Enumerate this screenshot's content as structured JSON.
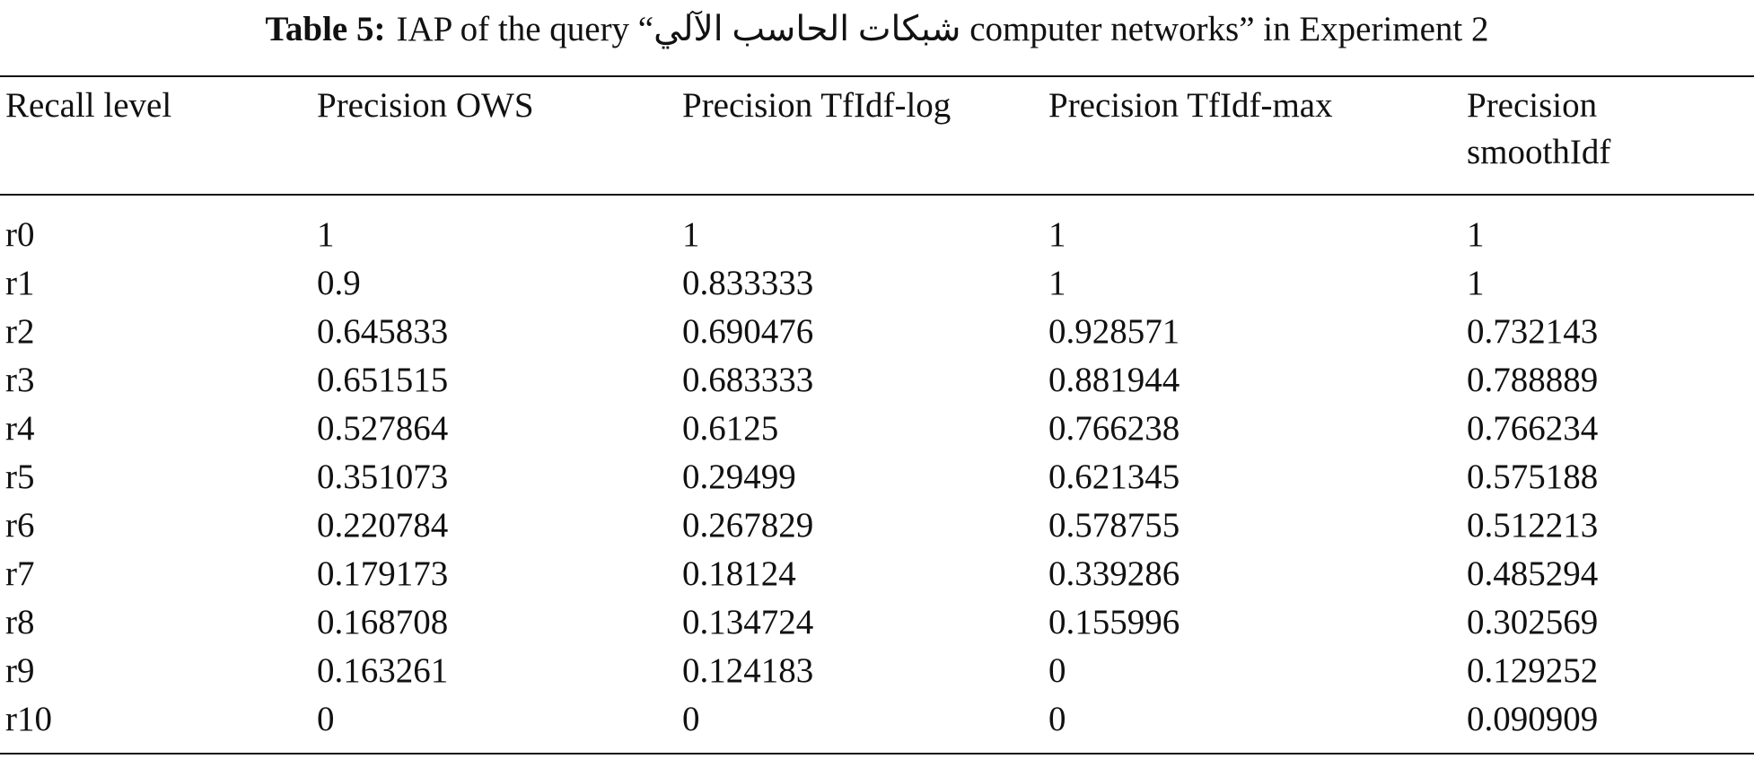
{
  "caption": {
    "label": "Table 5:",
    "text": "IAP of the query “شبكات الحاسب الآلي computer networks” in Experiment 2"
  },
  "table": {
    "header": [
      "Recall level",
      "Precision OWS",
      "Precision TfIdf-log",
      "Precision TfIdf-max",
      "Precision smoothIdf"
    ],
    "rows": [
      [
        "r0",
        "1",
        "1",
        "1",
        "1"
      ],
      [
        "r1",
        "0.9",
        "0.833333",
        "1",
        "1"
      ],
      [
        "r2",
        "0.645833",
        "0.690476",
        "0.928571",
        "0.732143"
      ],
      [
        "r3",
        "0.651515",
        "0.683333",
        "0.881944",
        "0.788889"
      ],
      [
        "r4",
        "0.527864",
        "0.6125",
        "0.766238",
        "0.766234"
      ],
      [
        "r5",
        "0.351073",
        "0.29499",
        "0.621345",
        "0.575188"
      ],
      [
        "r6",
        "0.220784",
        "0.267829",
        "0.578755",
        "0.512213"
      ],
      [
        "r7",
        "0.179173",
        "0.18124",
        "0.339286",
        "0.485294"
      ],
      [
        "r8",
        "0.168708",
        "0.134724",
        "0.155996",
        "0.302569"
      ],
      [
        "r9",
        "0.163261",
        "0.124183",
        "0",
        "0.129252"
      ],
      [
        "r10",
        "0",
        "0",
        "0",
        "0.090909"
      ]
    ]
  }
}
